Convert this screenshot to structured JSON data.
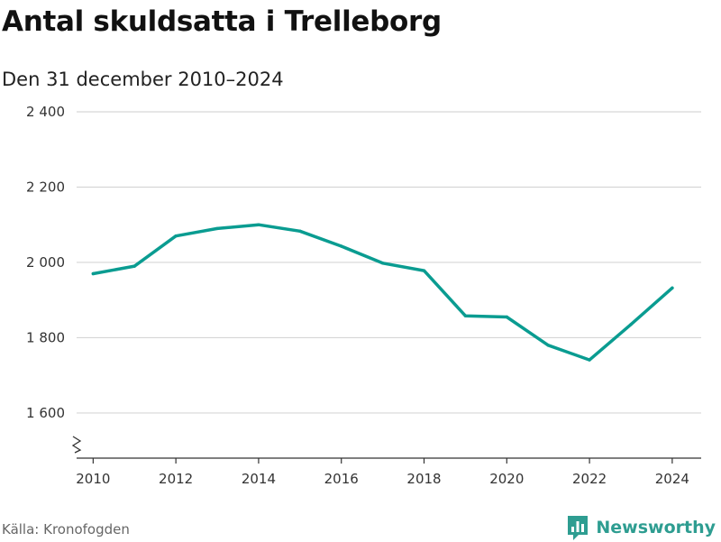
{
  "title": "Antal skuldsatta i Trelleborg",
  "subtitle": "Den 31 december 2010–2024",
  "source": "Källa: Kronofogden",
  "brand": {
    "name": "Newsworthy",
    "icon": "bar-chart-speech-bubble-icon"
  },
  "colors": {
    "line": "#0a9c91",
    "grid": "#d6d6d6",
    "axis": "#333333",
    "brand": "#2e9d91"
  },
  "chart_data": {
    "type": "line",
    "title": "Antal skuldsatta i Trelleborg",
    "subtitle": "Den 31 december 2010–2024",
    "xlabel": "",
    "ylabel": "",
    "x": [
      2010,
      2011,
      2012,
      2013,
      2014,
      2015,
      2016,
      2017,
      2018,
      2019,
      2020,
      2021,
      2022,
      2023,
      2024
    ],
    "series": [
      {
        "values": [
          1970,
          1990,
          2070,
          2090,
          2100,
          2083,
          2043,
          1998,
          1978,
          1858,
          1855,
          1780,
          1741,
          1835,
          1932
        ]
      }
    ],
    "xticks": [
      {
        "value": 2010,
        "label": "2010"
      },
      {
        "value": 2012,
        "label": "2012"
      },
      {
        "value": 2014,
        "label": "2014"
      },
      {
        "value": 2016,
        "label": "2016"
      },
      {
        "value": 2018,
        "label": "2018"
      },
      {
        "value": 2020,
        "label": "2020"
      },
      {
        "value": 2022,
        "label": "2022"
      },
      {
        "value": 2024,
        "label": "2024"
      }
    ],
    "yticks": [
      {
        "value": 1600,
        "label": "1 600"
      },
      {
        "value": 1800,
        "label": "1 800"
      },
      {
        "value": 2000,
        "label": "2 000"
      },
      {
        "value": 2200,
        "label": "2 200"
      },
      {
        "value": 2400,
        "label": "2 400"
      }
    ],
    "xlim": [
      2009.6,
      2024.7
    ],
    "ylim": [
      1480,
      2400
    ],
    "grid": true,
    "axis_break": true,
    "legend": "none"
  }
}
